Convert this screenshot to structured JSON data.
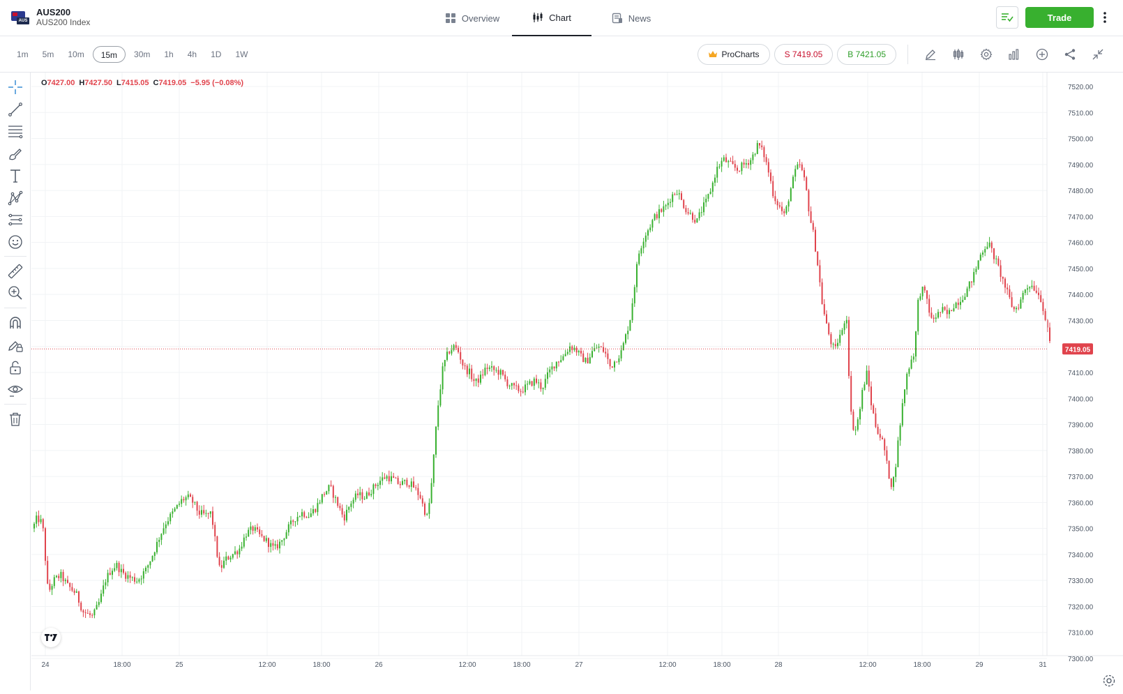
{
  "instrument": {
    "symbol": "AUS200",
    "name": "AUS200 Index",
    "logo_tag": "AUS"
  },
  "nav_tabs": [
    {
      "label": "Overview",
      "icon": "grid-icon"
    },
    {
      "label": "Chart",
      "icon": "candles-icon",
      "active": true
    },
    {
      "label": "News",
      "icon": "news-icon"
    }
  ],
  "header": {
    "trade_label": "Trade"
  },
  "timeframes": [
    "1m",
    "5m",
    "10m",
    "15m",
    "30m",
    "1h",
    "4h",
    "1D",
    "1W"
  ],
  "active_timeframe": "15m",
  "toolbar": {
    "procharts_label": "ProCharts",
    "sell_label": "S 7419.05",
    "buy_label": "B 7421.05"
  },
  "ohlc": {
    "o_label": "O",
    "o": "7427.00",
    "h_label": "H",
    "h": "7427.50",
    "l_label": "L",
    "l": "7415.05",
    "c_label": "C",
    "c": "7419.05",
    "change": "−5.95 (−0.08%)"
  },
  "colors": {
    "up": "#38b02f",
    "down": "#e0434c",
    "accent": "#38b02f",
    "price_line": "#e0434c"
  },
  "chart_data": {
    "type": "candlestick",
    "title": "",
    "xlabel": "",
    "ylabel": "",
    "ylim": [
      7295,
      7522
    ],
    "y_ticks": [
      "7300.00",
      "7310.00",
      "7320.00",
      "7330.00",
      "7340.00",
      "7350.00",
      "7360.00",
      "7370.00",
      "7380.00",
      "7390.00",
      "7400.00",
      "7410.00",
      "7420.00",
      "7430.00",
      "7440.00",
      "7450.00",
      "7460.00",
      "7470.00",
      "7480.00",
      "7490.00",
      "7500.00",
      "7510.00",
      "7520.00"
    ],
    "x_ticks": [
      "24",
      "18:00",
      "25",
      "12:00",
      "18:00",
      "26",
      "12:00",
      "18:00",
      "27",
      "12:00",
      "18:00",
      "28",
      "12:00",
      "18:00",
      "29",
      "31"
    ],
    "last_price": 7419.05,
    "last_price_label": "7419.05",
    "path": [
      [
        0,
        7350
      ],
      [
        6,
        7354
      ],
      [
        14,
        7352
      ],
      [
        16,
        7345
      ],
      [
        22,
        7325
      ],
      [
        30,
        7330
      ],
      [
        40,
        7332
      ],
      [
        50,
        7328
      ],
      [
        62,
        7325
      ],
      [
        72,
        7318
      ],
      [
        86,
        7316
      ],
      [
        96,
        7322
      ],
      [
        104,
        7330
      ],
      [
        112,
        7334
      ],
      [
        120,
        7336
      ],
      [
        128,
        7333
      ],
      [
        140,
        7331
      ],
      [
        150,
        7330
      ],
      [
        162,
        7334
      ],
      [
        172,
        7340
      ],
      [
        182,
        7347
      ],
      [
        190,
        7352
      ],
      [
        198,
        7355
      ],
      [
        206,
        7358
      ],
      [
        214,
        7361
      ],
      [
        222,
        7362
      ],
      [
        230,
        7360
      ],
      [
        238,
        7356
      ],
      [
        248,
        7355
      ],
      [
        256,
        7356
      ],
      [
        262,
        7344
      ],
      [
        268,
        7334
      ],
      [
        276,
        7338
      ],
      [
        286,
        7340
      ],
      [
        296,
        7342
      ],
      [
        306,
        7348
      ],
      [
        316,
        7350
      ],
      [
        326,
        7347
      ],
      [
        336,
        7345
      ],
      [
        346,
        7342
      ],
      [
        356,
        7345
      ],
      [
        366,
        7350
      ],
      [
        376,
        7354
      ],
      [
        386,
        7356
      ],
      [
        396,
        7355
      ],
      [
        406,
        7358
      ],
      [
        416,
        7363
      ],
      [
        426,
        7366
      ],
      [
        436,
        7360
      ],
      [
        446,
        7354
      ],
      [
        456,
        7360
      ],
      [
        466,
        7363
      ],
      [
        476,
        7362
      ],
      [
        486,
        7365
      ],
      [
        496,
        7368
      ],
      [
        506,
        7370
      ],
      [
        516,
        7369
      ],
      [
        526,
        7367
      ],
      [
        536,
        7368
      ],
      [
        546,
        7366
      ],
      [
        556,
        7362
      ],
      [
        560,
        7358
      ],
      [
        566,
        7354
      ],
      [
        572,
        7368
      ],
      [
        580,
        7395
      ],
      [
        588,
        7412
      ],
      [
        596,
        7418
      ],
      [
        604,
        7420
      ],
      [
        610,
        7418
      ],
      [
        618,
        7412
      ],
      [
        626,
        7410
      ],
      [
        634,
        7406
      ],
      [
        642,
        7408
      ],
      [
        650,
        7412
      ],
      [
        660,
        7411
      ],
      [
        670,
        7410
      ],
      [
        680,
        7406
      ],
      [
        690,
        7404
      ],
      [
        700,
        7403
      ],
      [
        710,
        7405
      ],
      [
        720,
        7407
      ],
      [
        730,
        7404
      ],
      [
        740,
        7410
      ],
      [
        750,
        7414
      ],
      [
        760,
        7416
      ],
      [
        770,
        7420
      ],
      [
        778,
        7419
      ],
      [
        786,
        7416
      ],
      [
        794,
        7414
      ],
      [
        802,
        7418
      ],
      [
        810,
        7420
      ],
      [
        820,
        7418
      ],
      [
        828,
        7412
      ],
      [
        836,
        7415
      ],
      [
        844,
        7418
      ],
      [
        850,
        7424
      ],
      [
        856,
        7430
      ],
      [
        862,
        7442
      ],
      [
        868,
        7455
      ],
      [
        876,
        7462
      ],
      [
        884,
        7466
      ],
      [
        892,
        7470
      ],
      [
        900,
        7472
      ],
      [
        908,
        7474
      ],
      [
        916,
        7478
      ],
      [
        924,
        7480
      ],
      [
        930,
        7476
      ],
      [
        938,
        7472
      ],
      [
        946,
        7470
      ],
      [
        952,
        7468
      ],
      [
        958,
        7472
      ],
      [
        966,
        7476
      ],
      [
        974,
        7482
      ],
      [
        980,
        7488
      ],
      [
        990,
        7492
      ],
      [
        1000,
        7490
      ],
      [
        1010,
        7488
      ],
      [
        1020,
        7490
      ],
      [
        1030,
        7492
      ],
      [
        1040,
        7498
      ],
      [
        1048,
        7494
      ],
      [
        1056,
        7486
      ],
      [
        1062,
        7478
      ],
      [
        1070,
        7474
      ],
      [
        1078,
        7470
      ],
      [
        1086,
        7480
      ],
      [
        1094,
        7488
      ],
      [
        1100,
        7490
      ],
      [
        1108,
        7482
      ],
      [
        1114,
        7470
      ],
      [
        1120,
        7462
      ],
      [
        1126,
        7450
      ],
      [
        1132,
        7436
      ],
      [
        1138,
        7428
      ],
      [
        1144,
        7422
      ],
      [
        1150,
        7418
      ],
      [
        1156,
        7424
      ],
      [
        1162,
        7426
      ],
      [
        1166,
        7436
      ],
      [
        1170,
        7410
      ],
      [
        1174,
        7390
      ],
      [
        1180,
        7388
      ],
      [
        1186,
        7396
      ],
      [
        1190,
        7404
      ],
      [
        1196,
        7410
      ],
      [
        1202,
        7398
      ],
      [
        1208,
        7390
      ],
      [
        1214,
        7386
      ],
      [
        1220,
        7382
      ],
      [
        1226,
        7372
      ],
      [
        1232,
        7366
      ],
      [
        1236,
        7372
      ],
      [
        1240,
        7382
      ],
      [
        1246,
        7396
      ],
      [
        1252,
        7408
      ],
      [
        1258,
        7414
      ],
      [
        1264,
        7418
      ],
      [
        1270,
        7440
      ],
      [
        1276,
        7442
      ],
      [
        1282,
        7438
      ],
      [
        1288,
        7430
      ],
      [
        1296,
        7432
      ],
      [
        1304,
        7434
      ],
      [
        1312,
        7432
      ],
      [
        1320,
        7436
      ],
      [
        1330,
        7438
      ],
      [
        1340,
        7442
      ],
      [
        1350,
        7448
      ],
      [
        1358,
        7455
      ],
      [
        1364,
        7458
      ],
      [
        1370,
        7460
      ],
      [
        1376,
        7456
      ],
      [
        1382,
        7452
      ],
      [
        1390,
        7446
      ],
      [
        1398,
        7440
      ],
      [
        1406,
        7434
      ],
      [
        1414,
        7436
      ],
      [
        1422,
        7442
      ],
      [
        1430,
        7444
      ],
      [
        1438,
        7442
      ],
      [
        1446,
        7438
      ],
      [
        1452,
        7430
      ],
      [
        1456,
        7424
      ],
      [
        1460,
        7419
      ]
    ]
  }
}
